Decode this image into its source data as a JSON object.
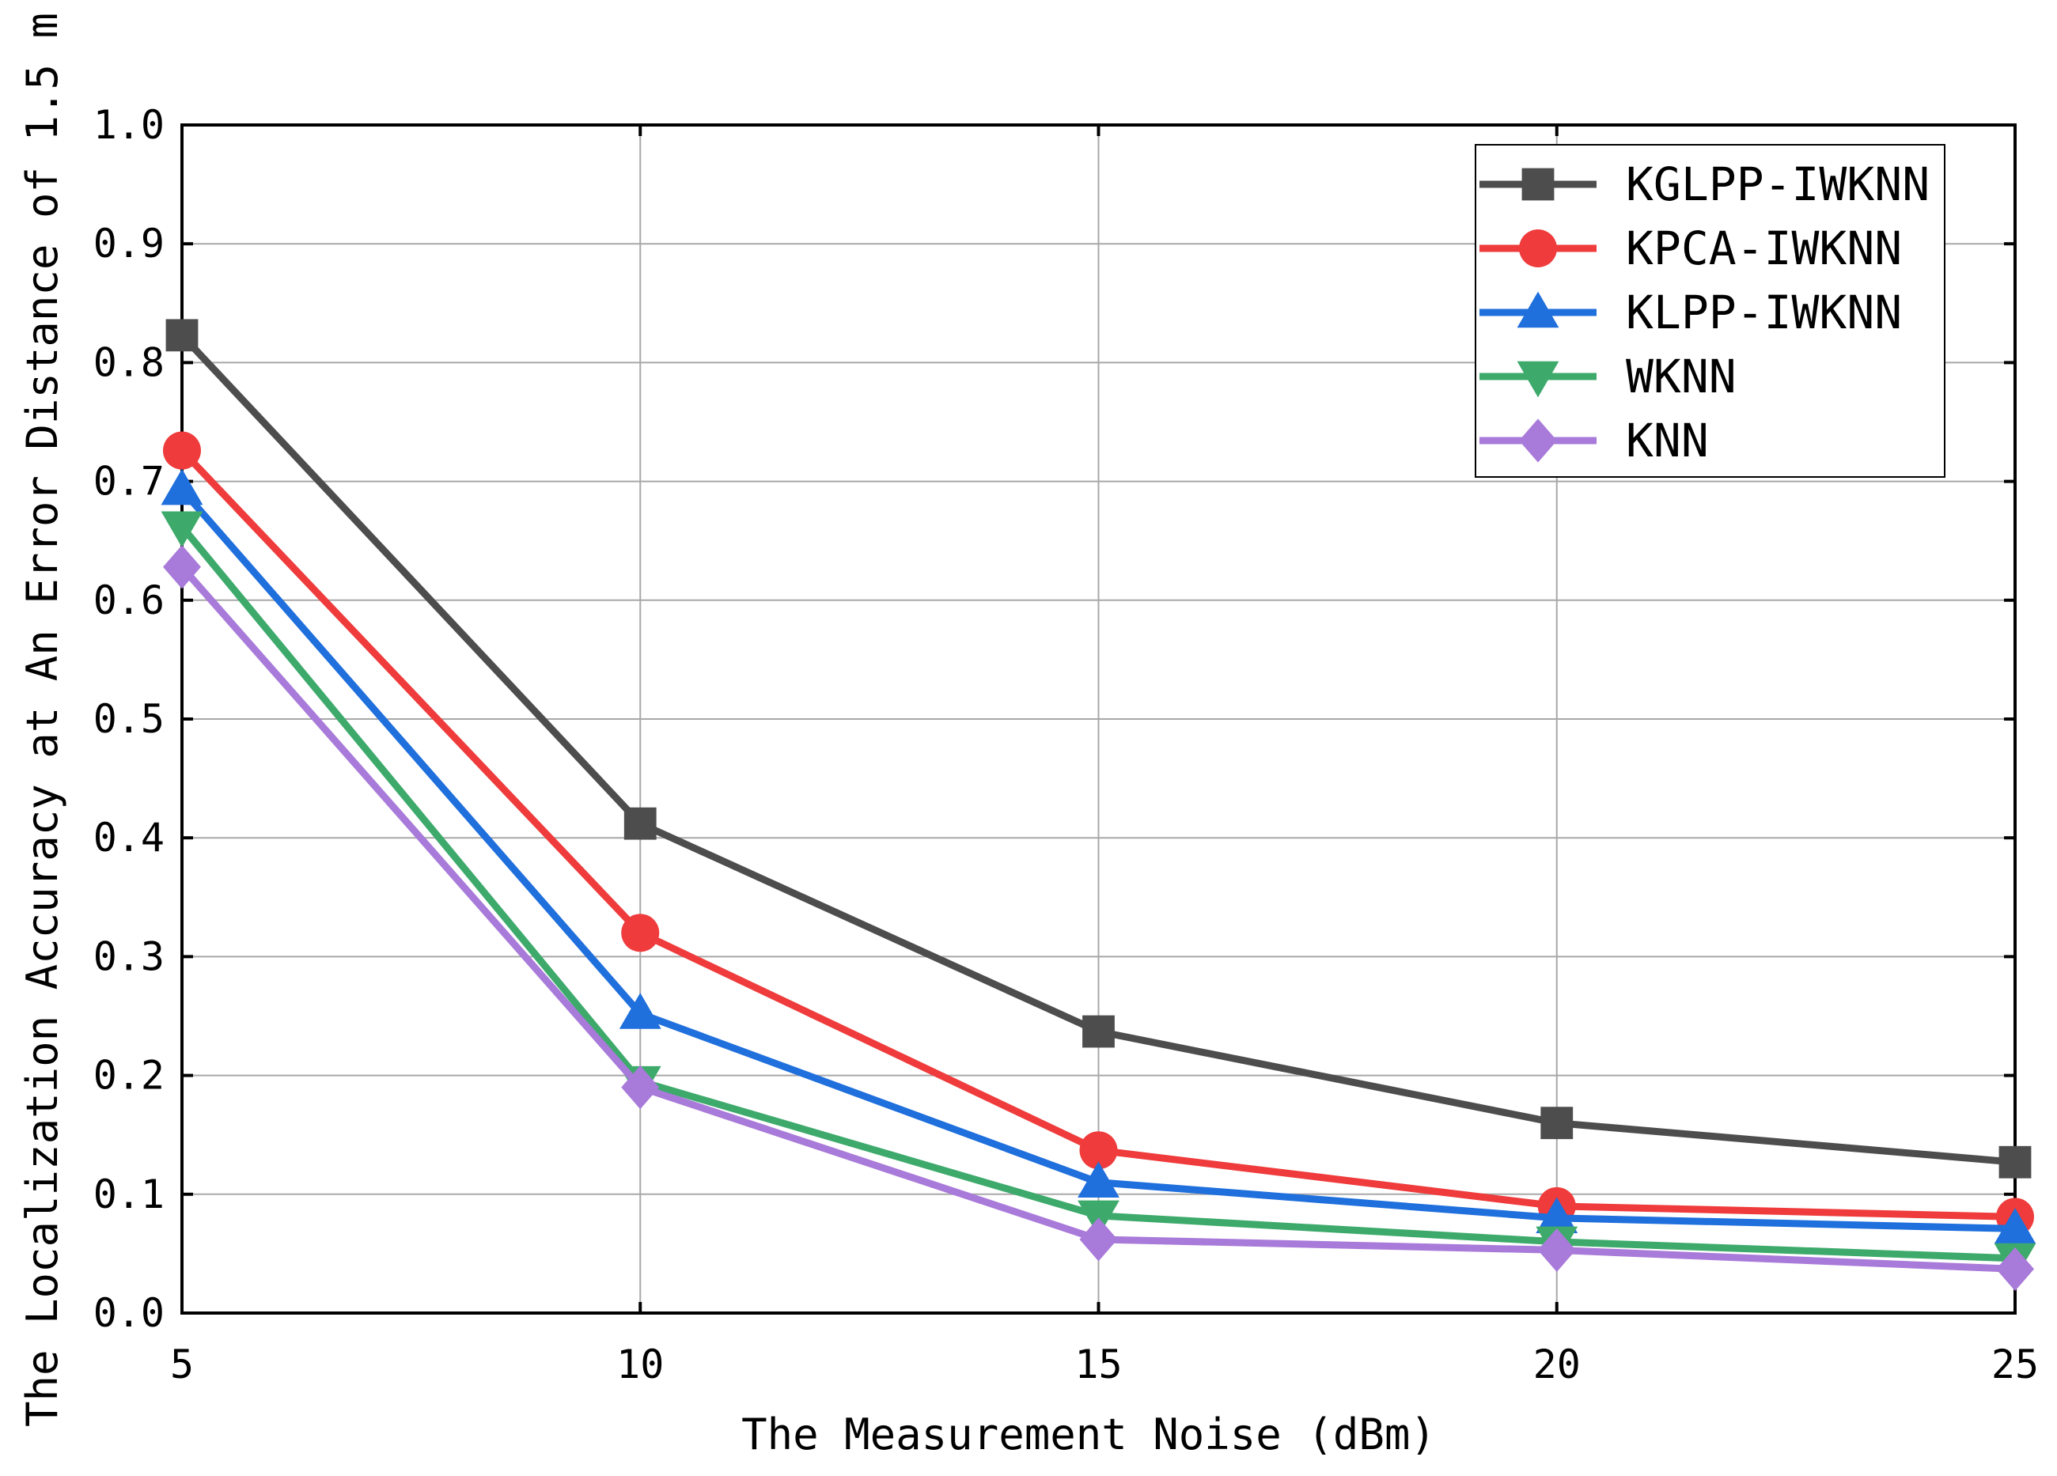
{
  "chart_data": {
    "type": "line",
    "title": "",
    "xlabel": "The Measurement Noise (dBm)",
    "ylabel": "The Localization Accuracy at An Error Distance of 1.5 m",
    "x": [
      5,
      10,
      15,
      20,
      25
    ],
    "x_tick_labels": [
      "5",
      "10",
      "15",
      "20",
      "25"
    ],
    "y_tick_labels": [
      "0.0",
      "0.1",
      "0.2",
      "0.3",
      "0.4",
      "0.5",
      "0.6",
      "0.7",
      "0.8",
      "0.9",
      "1.0"
    ],
    "xlim": [
      5,
      25
    ],
    "ylim": [
      0,
      1.0
    ],
    "grid": true,
    "legend_position": "top-right",
    "series": [
      {
        "name": "KGLPP-IWKNN",
        "marker": "square",
        "color": "#4d4d4d",
        "values": [
          0.823,
          0.412,
          0.237,
          0.16,
          0.127
        ]
      },
      {
        "name": "KPCA-IWKNN",
        "marker": "circle",
        "color": "#ef3b3b",
        "values": [
          0.726,
          0.32,
          0.137,
          0.09,
          0.081
        ]
      },
      {
        "name": "KLPP-IWKNN",
        "marker": "triangle-up",
        "color": "#1f6fdc",
        "values": [
          0.693,
          0.252,
          0.11,
          0.08,
          0.071
        ]
      },
      {
        "name": "WKNN",
        "marker": "triangle-down",
        "color": "#3daa6b",
        "values": [
          0.662,
          0.195,
          0.082,
          0.06,
          0.046
        ]
      },
      {
        "name": "KNN",
        "marker": "diamond",
        "color": "#a87ad9",
        "values": [
          0.628,
          0.19,
          0.062,
          0.053,
          0.037
        ]
      }
    ]
  }
}
